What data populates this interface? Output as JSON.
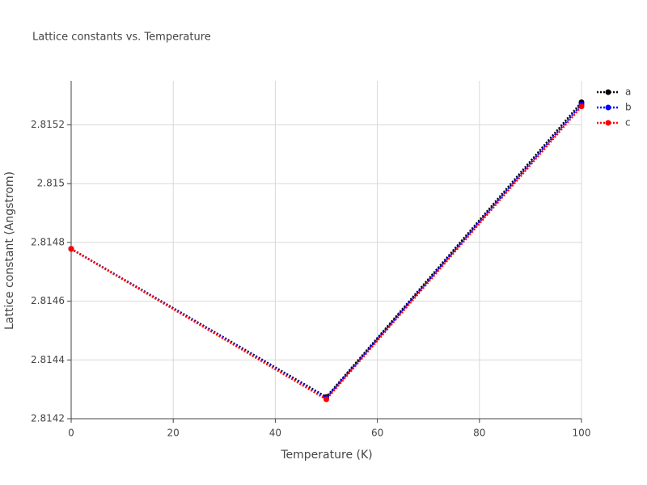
{
  "chart_data": {
    "type": "line",
    "title": "Lattice constants vs. Temperature",
    "x_label": "Temperature (K)",
    "y_label": "Lattice constant (Angstrom)",
    "x": [
      0,
      50,
      100
    ],
    "series": [
      {
        "name": "a",
        "color": "#000000",
        "values": [
          2.814778,
          2.814274,
          2.815277
        ]
      },
      {
        "name": "b",
        "color": "#0000ff",
        "values": [
          2.814778,
          2.814271,
          2.81527
        ]
      },
      {
        "name": "c",
        "color": "#ff0000",
        "values": [
          2.814778,
          2.814266,
          2.815263
        ]
      }
    ],
    "xlim": [
      0,
      100
    ],
    "xticks": [
      0,
      20,
      40,
      60,
      80,
      100
    ],
    "ylim": [
      2.8142,
      2.81535
    ],
    "yticks": [
      2.8142,
      2.8144,
      2.8146,
      2.8148,
      2.815,
      2.8152
    ],
    "grid": true,
    "legend": "right"
  }
}
